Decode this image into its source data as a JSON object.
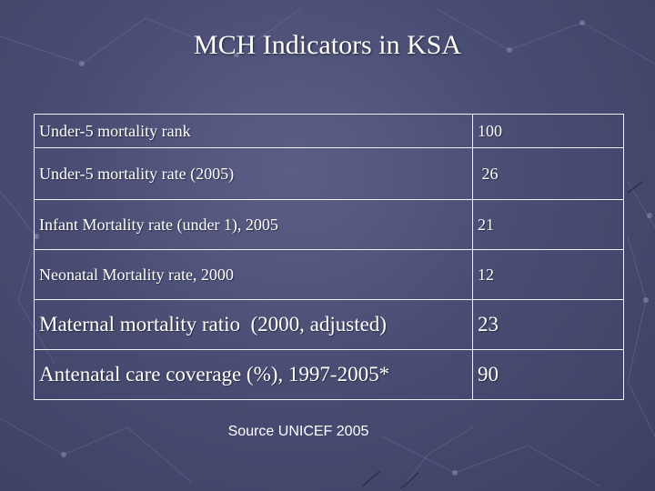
{
  "slide": {
    "title": "MCH Indicators in KSA",
    "source": "Source UNICEF 2005"
  },
  "table": {
    "rows": [
      {
        "label": "Under-5 mortality rank",
        "value": "100"
      },
      {
        "label": "Under-5 mortality rate (2005)",
        "value": "26"
      },
      {
        "label": "Infant Mortality rate (under 1), 2005",
        "value": "21"
      },
      {
        "label": "Neonatal Mortality rate, 2000",
        "value": "12"
      },
      {
        "label": "Maternal mortality ratio  (2000, adjusted)",
        "value": "23"
      },
      {
        "label": "Antenatal care coverage (%), 1997-2005*",
        "value": "90"
      }
    ]
  },
  "colors": {
    "background": "#4a4d73",
    "text": "#ffffff",
    "border": "#f2f2f6"
  }
}
